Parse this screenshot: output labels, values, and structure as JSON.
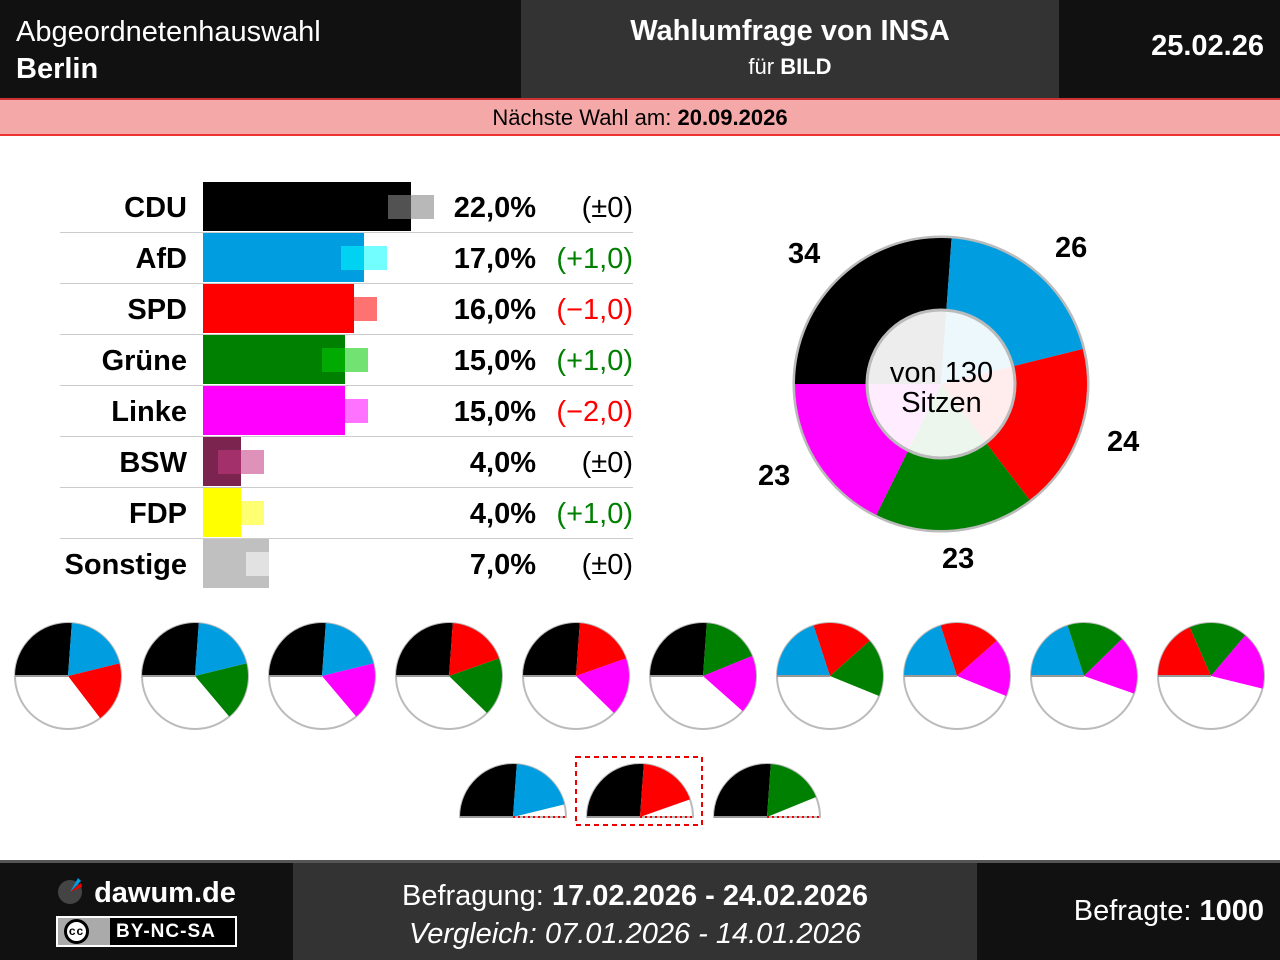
{
  "header": {
    "election": "Abgeordnetenhauswahl",
    "region": "Berlin",
    "title_prefix": "Wahlumfrage von",
    "institute": "INSA",
    "client_prefix": "für",
    "client": "BILD",
    "date": "25.02.26"
  },
  "next_election": {
    "label": "Nächste Wahl am:",
    "date": "20.09.2026"
  },
  "parties": [
    {
      "name": "CDU",
      "pct": "22,0%",
      "value": 22.0,
      "change": "(±0)",
      "change_color": "#000000",
      "color": "#000000"
    },
    {
      "name": "AfD",
      "pct": "17,0%",
      "value": 17.0,
      "change": "(+1,0)",
      "change_color": "#008000",
      "color": "#009ee0"
    },
    {
      "name": "SPD",
      "pct": "16,0%",
      "value": 16.0,
      "change": "(−1,0)",
      "change_color": "#ff0000",
      "color": "#ff0000"
    },
    {
      "name": "Grüne",
      "pct": "15,0%",
      "value": 15.0,
      "change": "(+1,0)",
      "change_color": "#008000",
      "color": "#008000"
    },
    {
      "name": "Linke",
      "pct": "15,0%",
      "value": 15.0,
      "change": "(−2,0)",
      "change_color": "#ff0000",
      "color": "#ff00ff"
    },
    {
      "name": "BSW",
      "pct": "4,0%",
      "value": 4.0,
      "change": "(±0)",
      "change_color": "#000000",
      "color": "#7b2450"
    },
    {
      "name": "FDP",
      "pct": "4,0%",
      "value": 4.0,
      "change": "(+1,0)",
      "change_color": "#008000",
      "color": "#ffff00"
    },
    {
      "name": "Sonstige",
      "pct": "7,0%",
      "value": 7.0,
      "change": "(±0)",
      "change_color": "#000000",
      "color": "#c0c0c0"
    }
  ],
  "seats": {
    "total_label": "von 130 Sitzen",
    "total": 130,
    "items": [
      {
        "party": "CDU",
        "seats": 34,
        "label": "34",
        "color": "#000000"
      },
      {
        "party": "AfD",
        "seats": 26,
        "label": "26",
        "color": "#009ee0"
      },
      {
        "party": "SPD",
        "seats": 24,
        "label": "24",
        "color": "#ff0000"
      },
      {
        "party": "Grüne",
        "seats": 23,
        "label": "23",
        "color": "#008000"
      },
      {
        "party": "Linke",
        "seats": 23,
        "label": "23",
        "color": "#ff00ff"
      }
    ]
  },
  "coalitions": [
    [
      "CDU",
      "AfD",
      "SPD"
    ],
    [
      "CDU",
      "AfD",
      "Grüne"
    ],
    [
      "CDU",
      "AfD",
      "Linke"
    ],
    [
      "CDU",
      "SPD",
      "Grüne"
    ],
    [
      "CDU",
      "SPD",
      "Linke"
    ],
    [
      "CDU",
      "Grüne",
      "Linke"
    ],
    [
      "AfD",
      "SPD",
      "Grüne"
    ],
    [
      "AfD",
      "SPD",
      "Linke"
    ],
    [
      "AfD",
      "Grüne",
      "Linke"
    ],
    [
      "SPD",
      "Grüne",
      "Linke"
    ]
  ],
  "coalitions_minor": [
    {
      "parties": [
        "CDU",
        "AfD"
      ],
      "highlight": false
    },
    {
      "parties": [
        "CDU",
        "SPD"
      ],
      "highlight": true
    },
    {
      "parties": [
        "CDU",
        "Grüne"
      ],
      "highlight": false
    }
  ],
  "footer": {
    "site": "dawum.de",
    "license": "BY-NC-SA",
    "license_icon": "cc",
    "survey_label": "Befragung:",
    "survey_period": "17.02.2026 - 24.02.2026",
    "compare_label": "Vergleich:",
    "compare_period": "07.01.2026 - 14.01.2026",
    "respondents_label": "Befragte:",
    "respondents": "1000"
  }
}
